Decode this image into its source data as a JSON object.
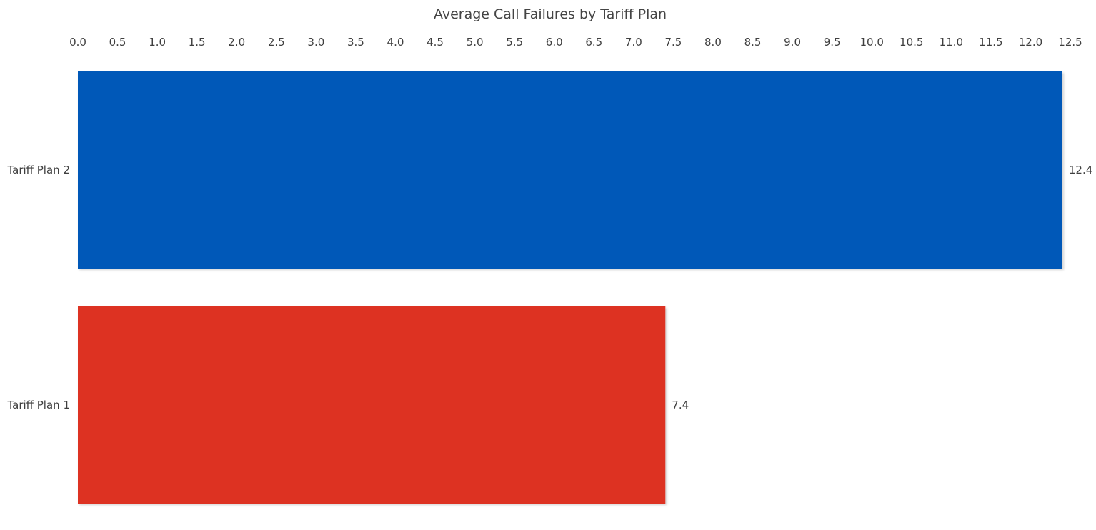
{
  "chart_data": {
    "type": "bar",
    "orientation": "horizontal",
    "title": "Average Call Failures by Tariff Plan",
    "xlabel": "",
    "ylabel": "",
    "xlim": [
      0,
      12.5
    ],
    "x_ticks": [
      "0.0",
      "0.5",
      "1.0",
      "1.5",
      "2.0",
      "2.5",
      "3.0",
      "3.5",
      "4.0",
      "4.5",
      "5.0",
      "5.5",
      "6.0",
      "6.5",
      "7.0",
      "7.5",
      "8.0",
      "8.5",
      "9.0",
      "9.5",
      "10.0",
      "10.5",
      "11.0",
      "11.5",
      "12.0",
      "12.5"
    ],
    "x_axis_position": "top",
    "grid": false,
    "categories": [
      "Tariff Plan 2",
      "Tariff Plan 1"
    ],
    "values": [
      12.4,
      7.4
    ],
    "data_labels": [
      "12.4",
      "7.4"
    ],
    "colors": [
      "#0359b8",
      "#dd3222"
    ]
  }
}
